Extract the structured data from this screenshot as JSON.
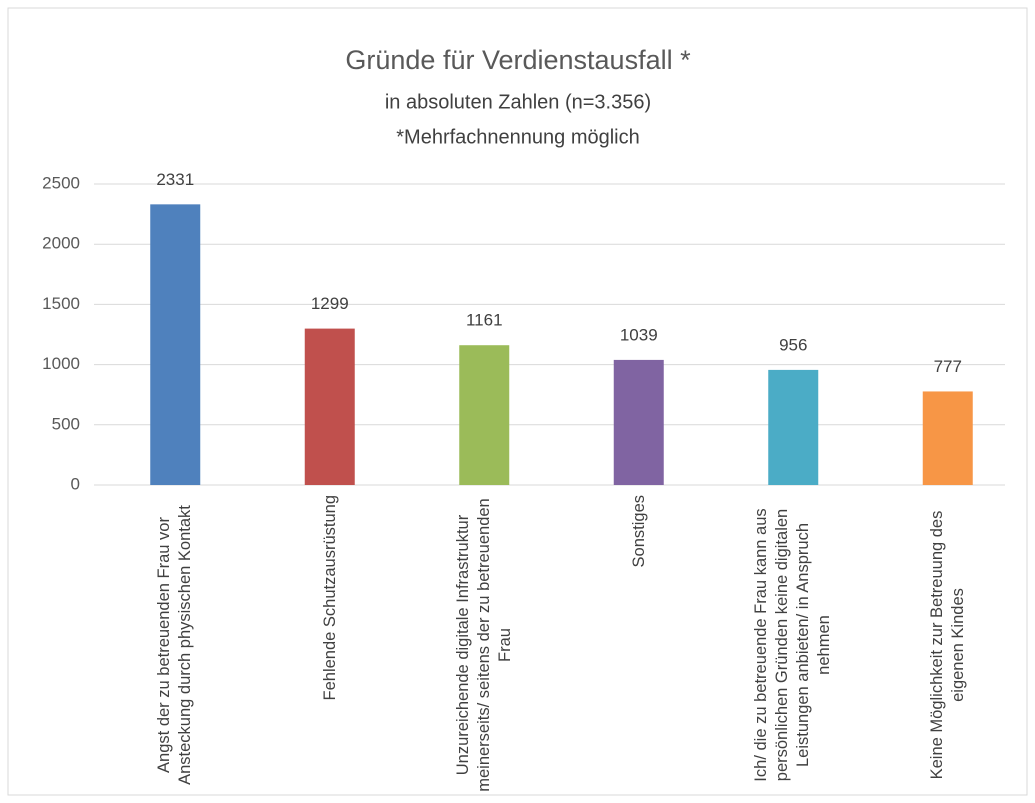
{
  "chart_data": {
    "type": "bar",
    "title": "Gründe für Verdienstausfall *",
    "subtitle": "in absoluten Zahlen (n=3.356)",
    "note": "*Mehrfachnennung möglich",
    "categories": [
      "Angst der zu betreuenden Frau vor Ansteckung durch physischen Kontakt",
      "Fehlende Schutzausrüstung",
      "Unzureichende digitale Infrastruktur meinerseits/ seitens der zu betreuenden Frau",
      "Sonstiges",
      "Ich/ die zu betreuende Frau kann aus persönlichen Gründen keine digitalen Leistungen anbieten/ in Anspruch nehmen",
      "Keine Möglichkeit zur Betreuung des eigenen Kindes"
    ],
    "values": [
      2331,
      1299,
      1161,
      1039,
      956,
      777
    ],
    "colors": [
      "#4f81bd",
      "#c0504d",
      "#9bbb59",
      "#8064a2",
      "#4bacc6",
      "#f79646"
    ],
    "ylim": [
      0,
      2500
    ],
    "yticks": [
      0,
      500,
      1000,
      1500,
      2000,
      2500
    ],
    "grid": true
  }
}
